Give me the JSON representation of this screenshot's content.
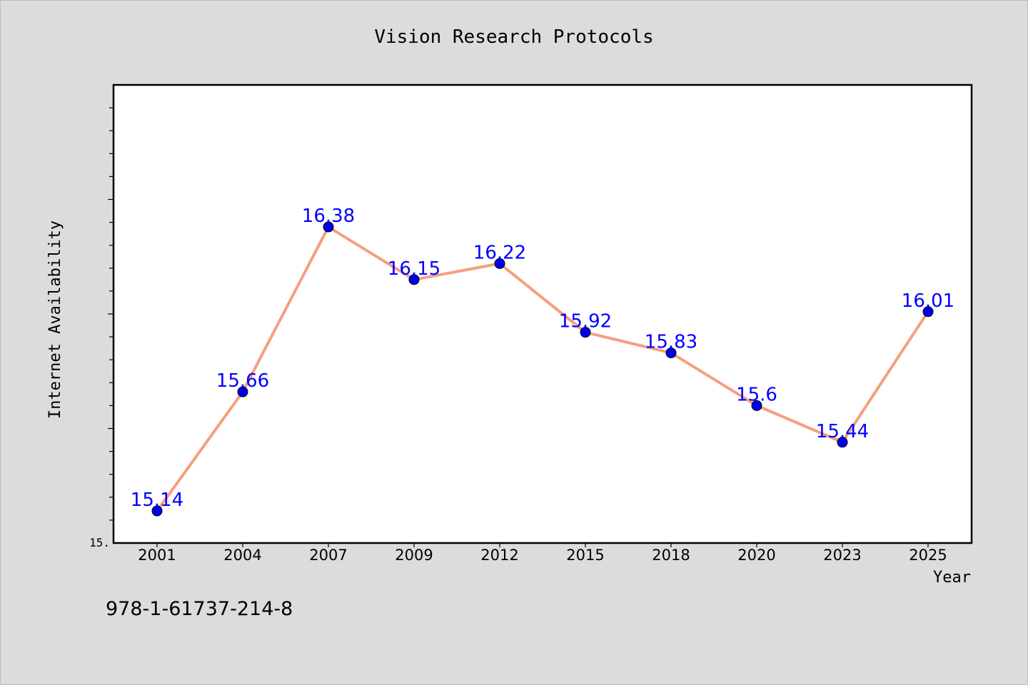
{
  "chart_data": {
    "type": "line",
    "title": "Vision Research Protocols",
    "xlabel": "Year",
    "ylabel": "Internet Availability",
    "categories": [
      "2001",
      "2004",
      "2007",
      "2009",
      "2012",
      "2015",
      "2018",
      "2020",
      "2023",
      "2025"
    ],
    "series": [
      {
        "values": [
          15.14,
          15.66,
          16.38,
          16.15,
          16.22,
          15.92,
          15.83,
          15.6,
          15.44,
          16.01
        ],
        "data_labels": [
          "15.14",
          "15.66",
          "16.38",
          "16.15",
          "16.22",
          "15.92",
          "15.83",
          "15.6",
          "15.44",
          "16.01"
        ]
      }
    ],
    "ylim": [
      15.0,
      17.0
    ],
    "ytick_label": "15.",
    "grid": false,
    "colors": {
      "line": "#f4a07e",
      "marker": "#0000ee",
      "data_label": "#0000ff",
      "background": "#dcdcdc",
      "plot_background": "#ffffff"
    }
  },
  "footer_text": "978-1-61737-214-8"
}
